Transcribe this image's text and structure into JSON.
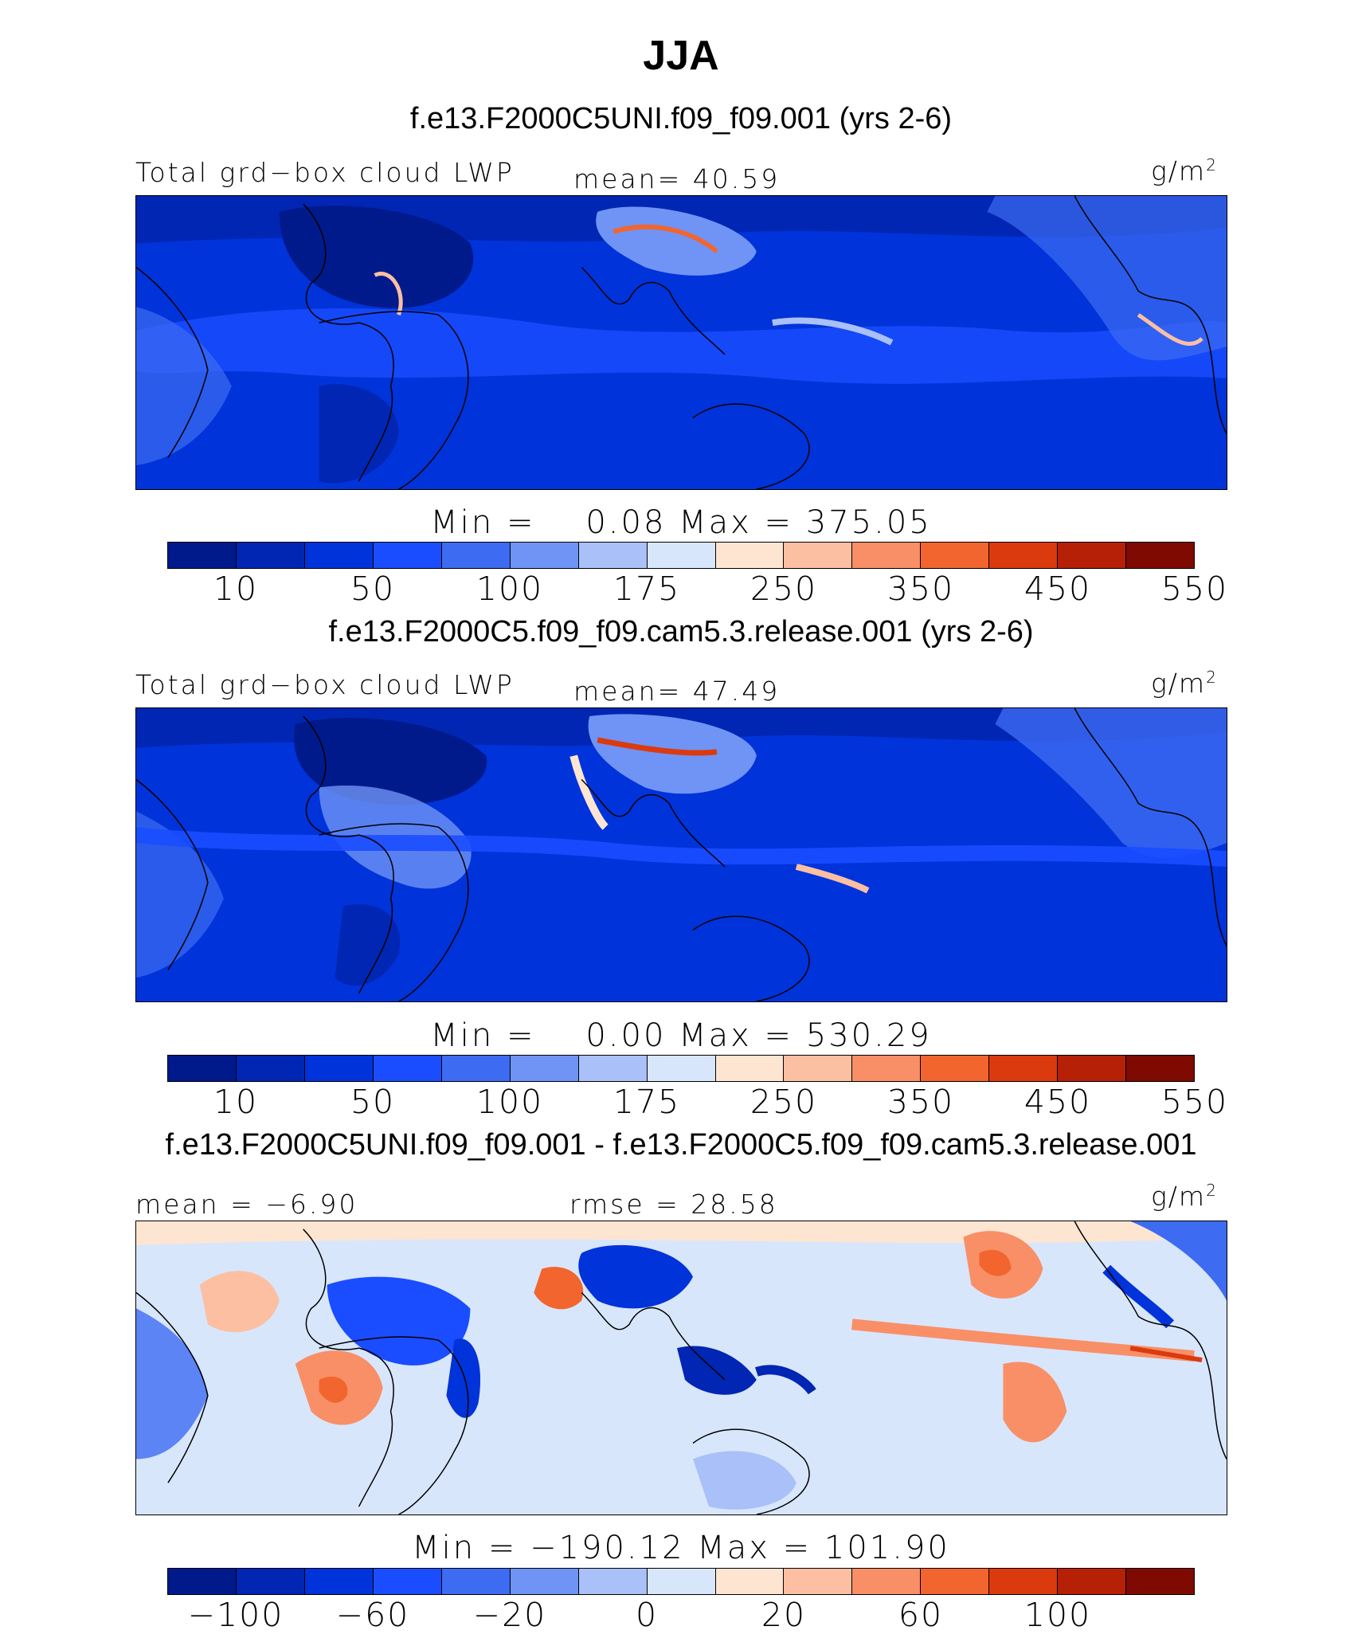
{
  "title": "JJA",
  "colors": {
    "lwp_levels": [
      "#001a8c",
      "#0026b3",
      "#0033d9",
      "#1a4dff",
      "#3d6cf2",
      "#6f94f5",
      "#a9c0f8",
      "#d8e6fc",
      "#fde5d2",
      "#fcbfa2",
      "#f98f66",
      "#f2652e",
      "#db3a0e",
      "#b52006",
      "#7e0a02"
    ],
    "diff_levels": [
      "#001a8c",
      "#0026b3",
      "#0033d9",
      "#1a4dff",
      "#3d6cf2",
      "#6f94f5",
      "#a9c0f8",
      "#d8e6fc",
      "#fde5d2",
      "#fcbfa2",
      "#f98f66",
      "#f2652e",
      "#db3a0e",
      "#b52006",
      "#7e0a02"
    ],
    "coastline": "#000000"
  },
  "panels": [
    {
      "case_title": "f.e13.F2000C5UNI.f09_f09.001 (yrs 2-6)",
      "left_label": "Total grd−box cloud LWP",
      "mid_label": "mean=  40.59",
      "unit": "g/m",
      "unit_sup": "2",
      "minmax": "Min =    0.08 Max = 375.05",
      "colorbar_ticks": [
        "10",
        "50",
        "100",
        "175",
        "250",
        "350",
        "450",
        "550"
      ],
      "map_kind": "lwp"
    },
    {
      "case_title": "f.e13.F2000C5.f09_f09.cam5.3.release.001 (yrs 2-6)",
      "left_label": "Total grd−box cloud LWP",
      "mid_label": "mean=  47.49",
      "unit": "g/m",
      "unit_sup": "2",
      "minmax": "Min =    0.00 Max = 530.29",
      "colorbar_ticks": [
        "10",
        "50",
        "100",
        "175",
        "250",
        "350",
        "450",
        "550"
      ],
      "map_kind": "lwp"
    },
    {
      "case_title": "f.e13.F2000C5UNI.f09_f09.001 - f.e13.F2000C5.f09_f09.cam5.3.release.001",
      "left_label": "mean =  −6.90",
      "mid_label": "rmse =  28.58",
      "unit": "g/m",
      "unit_sup": "2",
      "minmax": "Min = −190.12 Max = 101.90",
      "colorbar_ticks": [
        "−100",
        "−60",
        "−20",
        "0",
        "20",
        "60",
        "100"
      ],
      "map_kind": "diff"
    }
  ]
}
